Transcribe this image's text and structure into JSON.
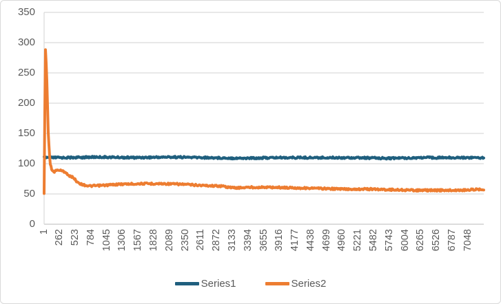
{
  "chart": {
    "background": "#FFFFFF",
    "border_color": "#D9D9D9",
    "grid_color": "#D9D9D9",
    "axis_line_color": "#C6C6C6",
    "label_color": "#595959"
  },
  "chart_data": {
    "type": "line",
    "title": "",
    "xlabel": "",
    "ylabel": "",
    "grid": "horizontal",
    "legend_position": "bottom",
    "ylim": [
      0,
      350
    ],
    "y_ticks": [
      0,
      50,
      100,
      150,
      200,
      250,
      300,
      350
    ],
    "x_range": [
      1,
      7309
    ],
    "x_tick_step": 261,
    "x_tick_labels": [
      "1",
      "262",
      "523",
      "784",
      "1045",
      "1306",
      "1567",
      "1828",
      "2089",
      "2350",
      "2611",
      "2872",
      "3133",
      "3394",
      "3655",
      "3916",
      "4177",
      "4438",
      "4699",
      "4960",
      "5221",
      "5482",
      "5743",
      "6004",
      "6265",
      "6526",
      "6787",
      "7048"
    ],
    "series": [
      {
        "name": "Series1",
        "color": "#1F5F7E",
        "description": "approximately constant noisy line",
        "keypoints": {
          "x": [
            1,
            400,
            900,
            1500,
            2100,
            2700,
            3300,
            3900,
            4500,
            5100,
            5700,
            6300,
            6900,
            7309
          ],
          "y": [
            110,
            110,
            111,
            110,
            111,
            110,
            109,
            110,
            110,
            110,
            109,
            110,
            110,
            110
          ]
        }
      },
      {
        "name": "Series2",
        "color": "#ED7D31",
        "description": "initial spike then slow decay",
        "keypoints": {
          "x": [
            1,
            22,
            45,
            70,
            100,
            135,
            175,
            230,
            300,
            360,
            420,
            480,
            540,
            620,
            750,
            950,
            1250,
            1600,
            1950,
            2300,
            2650,
            2950,
            3150,
            3450,
            3800,
            4200,
            4600,
            5000,
            5400,
            5800,
            6200,
            6600,
            6900,
            7100,
            7309
          ],
          "y": [
            52,
            293,
            245,
            150,
            100,
            88,
            87,
            90,
            88,
            86,
            79,
            78,
            71,
            66,
            63,
            64,
            66,
            67,
            67,
            66,
            64,
            63,
            60,
            61,
            61,
            60,
            59,
            58,
            58,
            57,
            56,
            56,
            56,
            57,
            58
          ]
        }
      }
    ]
  },
  "legend": {
    "series1_label": "Series1",
    "series2_label": "Series2"
  }
}
